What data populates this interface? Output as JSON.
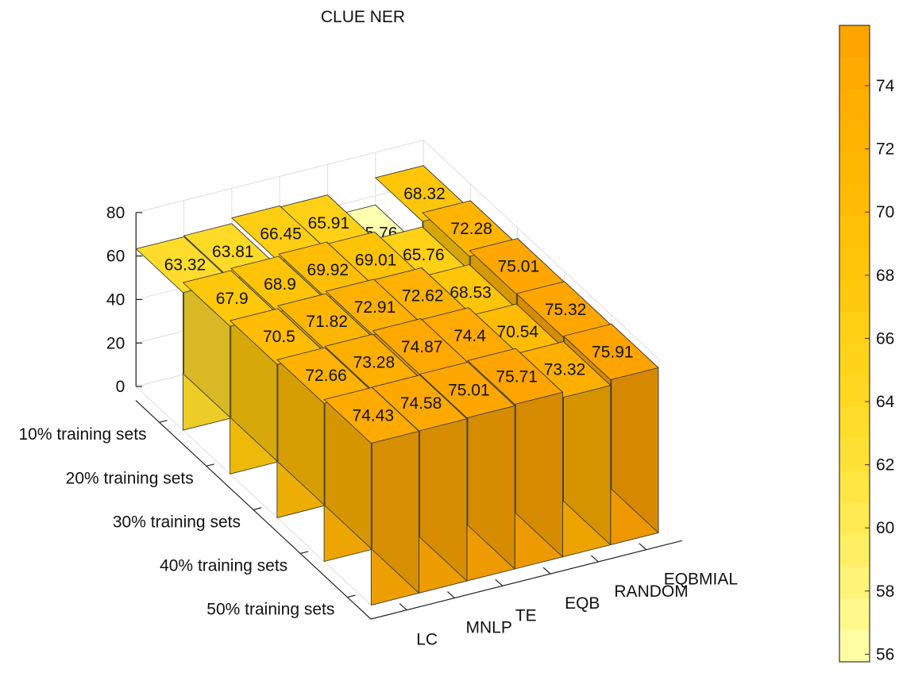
{
  "chart_data": {
    "type": "bar3d",
    "title": "CLUE NER",
    "row_categories": [
      "10% training sets",
      "20% training sets",
      "30% training sets",
      "40% training sets",
      "50% training sets"
    ],
    "col_categories": [
      "LC",
      "MNLP",
      "TE",
      "EQB",
      "RANDOM",
      "EQBMIAL"
    ],
    "values": [
      [
        63.32,
        63.81,
        66.45,
        65.91,
        55.76,
        68.32
      ],
      [
        67.9,
        68.9,
        69.92,
        69.01,
        65.76,
        72.28
      ],
      [
        70.5,
        71.82,
        72.91,
        72.62,
        68.53,
        75.01
      ],
      [
        72.66,
        73.28,
        74.87,
        74.4,
        70.54,
        75.32
      ],
      [
        74.43,
        74.58,
        75.01,
        75.71,
        73.32,
        75.91
      ]
    ],
    "z_ticks": [
      "0",
      "20",
      "40",
      "60",
      "80"
    ],
    "z_range": [
      0,
      80
    ],
    "colorbar": {
      "range": [
        55.76,
        75.91
      ],
      "ticks": [
        "56",
        "58",
        "60",
        "62",
        "64",
        "66",
        "68",
        "70",
        "72",
        "74"
      ],
      "colormap": "autumn-flipped (light yellow to orange)"
    },
    "grid": true
  }
}
